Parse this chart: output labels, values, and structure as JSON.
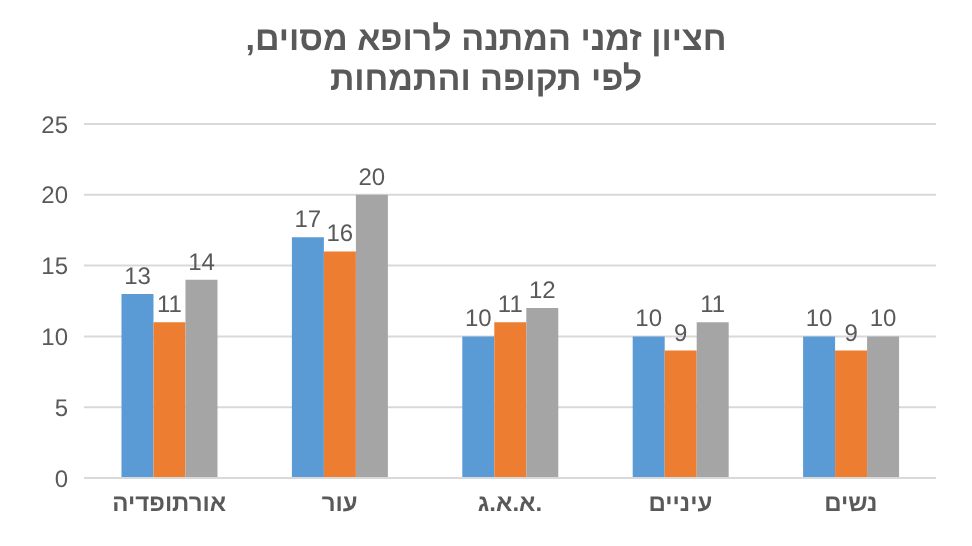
{
  "chart_data": {
    "type": "bar",
    "title": "חציון זמני המתנה לרופא מסוים,\nלפי תקופה והתמחות",
    "categories": [
      "אורתופדיה",
      "עור",
      "א.א.ג.",
      "עיניים",
      "נשים"
    ],
    "series": [
      {
        "color": "#5b9bd5",
        "values": [
          13,
          17,
          10,
          10,
          10
        ]
      },
      {
        "color": "#ed7d31",
        "values": [
          11,
          16,
          11,
          9,
          9
        ]
      },
      {
        "color": "#a5a5a5",
        "values": [
          14,
          20,
          12,
          11,
          10
        ]
      }
    ],
    "ylim": [
      0,
      25
    ],
    "yticks": [
      0,
      5,
      10,
      15,
      20,
      25
    ],
    "grid": "y",
    "data_labels": true
  }
}
